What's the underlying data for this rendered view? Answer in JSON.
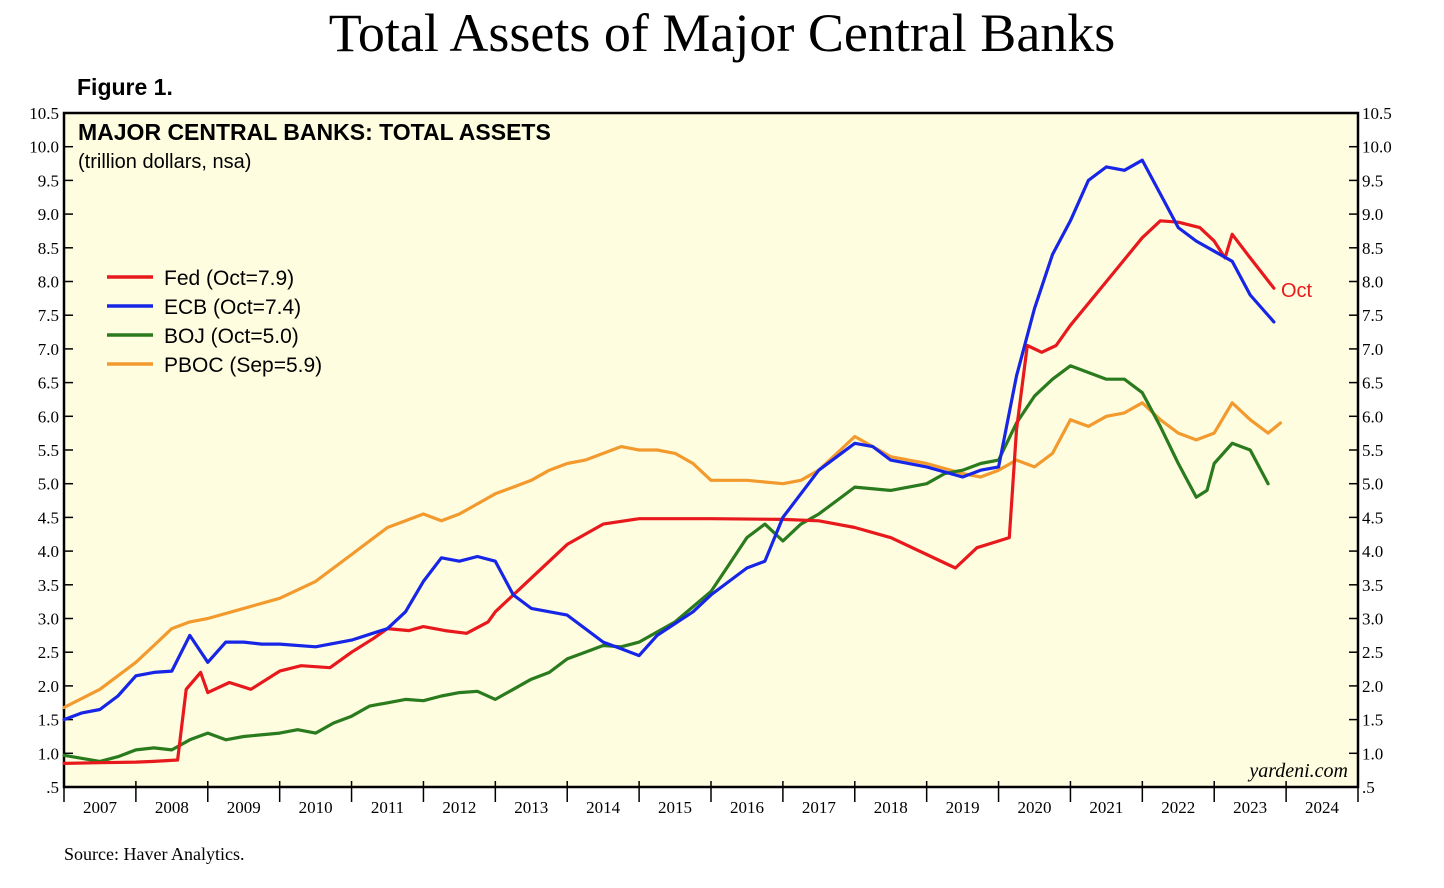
{
  "page": {
    "title": "Total Assets of Major Central Banks",
    "figure_label": "Figure 1.",
    "source": "Source: Haver Analytics.",
    "watermark": "yardeni.com"
  },
  "colors": {
    "plot_background": "#fefde0",
    "fed": "#e8191c",
    "ecb": "#1726e6",
    "boj": "#2a7a1e",
    "pboc": "#f29a2e"
  },
  "chart_data": {
    "type": "line",
    "title": "MAJOR CENTRAL BANKS: TOTAL ASSETS",
    "subtitle": "(trillion dollars, nsa)",
    "xlabel": "",
    "ylabel": "",
    "x_categories": [
      "2007",
      "2008",
      "2009",
      "2010",
      "2011",
      "2012",
      "2013",
      "2014",
      "2015",
      "2016",
      "2017",
      "2018",
      "2019",
      "2020",
      "2021",
      "2022",
      "2023",
      "2024"
    ],
    "xlim": [
      2007.0,
      2025.0
    ],
    "ylim": [
      0.5,
      10.5
    ],
    "y_ticks": [
      ".5",
      "1.0",
      "1.5",
      "2.0",
      "2.5",
      "3.0",
      "3.5",
      "4.0",
      "4.5",
      "5.0",
      "5.5",
      "6.0",
      "6.5",
      "7.0",
      "7.5",
      "8.0",
      "8.5",
      "9.0",
      "9.5",
      "10.0",
      "10.5"
    ],
    "grid": false,
    "legend_position": "top-left",
    "end_annotation": "Oct",
    "series": [
      {
        "name": "Fed (Oct=7.9)",
        "key": "fed",
        "points": [
          [
            2007.0,
            0.85
          ],
          [
            2007.5,
            0.86
          ],
          [
            2008.0,
            0.87
          ],
          [
            2008.25,
            0.88
          ],
          [
            2008.58,
            0.9
          ],
          [
            2008.7,
            1.95
          ],
          [
            2008.9,
            2.2
          ],
          [
            2009.0,
            1.9
          ],
          [
            2009.3,
            2.05
          ],
          [
            2009.6,
            1.95
          ],
          [
            2010.0,
            2.22
          ],
          [
            2010.3,
            2.3
          ],
          [
            2010.7,
            2.27
          ],
          [
            2011.0,
            2.5
          ],
          [
            2011.3,
            2.7
          ],
          [
            2011.5,
            2.85
          ],
          [
            2011.8,
            2.82
          ],
          [
            2012.0,
            2.88
          ],
          [
            2012.3,
            2.82
          ],
          [
            2012.6,
            2.78
          ],
          [
            2012.9,
            2.95
          ],
          [
            2013.0,
            3.1
          ],
          [
            2013.5,
            3.6
          ],
          [
            2014.0,
            4.1
          ],
          [
            2014.5,
            4.4
          ],
          [
            2015.0,
            4.48
          ],
          [
            2016.0,
            4.48
          ],
          [
            2017.0,
            4.47
          ],
          [
            2017.5,
            4.45
          ],
          [
            2018.0,
            4.35
          ],
          [
            2018.5,
            4.2
          ],
          [
            2019.0,
            3.95
          ],
          [
            2019.4,
            3.75
          ],
          [
            2019.7,
            4.05
          ],
          [
            2020.0,
            4.15
          ],
          [
            2020.15,
            4.2
          ],
          [
            2020.25,
            5.8
          ],
          [
            2020.4,
            7.05
          ],
          [
            2020.6,
            6.95
          ],
          [
            2020.8,
            7.05
          ],
          [
            2021.0,
            7.35
          ],
          [
            2021.5,
            8.0
          ],
          [
            2022.0,
            8.65
          ],
          [
            2022.25,
            8.9
          ],
          [
            2022.5,
            8.88
          ],
          [
            2022.8,
            8.8
          ],
          [
            2023.0,
            8.6
          ],
          [
            2023.15,
            8.35
          ],
          [
            2023.25,
            8.7
          ],
          [
            2023.5,
            8.35
          ],
          [
            2023.83,
            7.9
          ]
        ]
      },
      {
        "name": "ECB (Oct=7.4)",
        "key": "ecb",
        "points": [
          [
            2007.0,
            1.5
          ],
          [
            2007.25,
            1.6
          ],
          [
            2007.5,
            1.65
          ],
          [
            2007.75,
            1.85
          ],
          [
            2008.0,
            2.15
          ],
          [
            2008.25,
            2.2
          ],
          [
            2008.5,
            2.22
          ],
          [
            2008.75,
            2.75
          ],
          [
            2009.0,
            2.35
          ],
          [
            2009.25,
            2.65
          ],
          [
            2009.5,
            2.65
          ],
          [
            2009.75,
            2.62
          ],
          [
            2010.0,
            2.62
          ],
          [
            2010.5,
            2.58
          ],
          [
            2011.0,
            2.68
          ],
          [
            2011.5,
            2.85
          ],
          [
            2011.75,
            3.1
          ],
          [
            2012.0,
            3.55
          ],
          [
            2012.25,
            3.9
          ],
          [
            2012.5,
            3.85
          ],
          [
            2012.75,
            3.92
          ],
          [
            2013.0,
            3.85
          ],
          [
            2013.25,
            3.35
          ],
          [
            2013.5,
            3.15
          ],
          [
            2014.0,
            3.05
          ],
          [
            2014.5,
            2.65
          ],
          [
            2014.75,
            2.55
          ],
          [
            2015.0,
            2.45
          ],
          [
            2015.25,
            2.75
          ],
          [
            2015.75,
            3.1
          ],
          [
            2016.0,
            3.35
          ],
          [
            2016.5,
            3.75
          ],
          [
            2016.75,
            3.85
          ],
          [
            2017.0,
            4.5
          ],
          [
            2017.5,
            5.2
          ],
          [
            2018.0,
            5.6
          ],
          [
            2018.25,
            5.55
          ],
          [
            2018.5,
            5.35
          ],
          [
            2019.0,
            5.25
          ],
          [
            2019.5,
            5.1
          ],
          [
            2019.75,
            5.2
          ],
          [
            2020.0,
            5.25
          ],
          [
            2020.25,
            6.6
          ],
          [
            2020.5,
            7.6
          ],
          [
            2020.75,
            8.4
          ],
          [
            2021.0,
            8.9
          ],
          [
            2021.25,
            9.5
          ],
          [
            2021.5,
            9.7
          ],
          [
            2021.75,
            9.65
          ],
          [
            2022.0,
            9.8
          ],
          [
            2022.25,
            9.3
          ],
          [
            2022.5,
            8.8
          ],
          [
            2022.75,
            8.6
          ],
          [
            2023.0,
            8.45
          ],
          [
            2023.25,
            8.3
          ],
          [
            2023.5,
            7.8
          ],
          [
            2023.83,
            7.4
          ]
        ]
      },
      {
        "name": "BOJ (Oct=5.0)",
        "key": "boj",
        "points": [
          [
            2007.0,
            0.97
          ],
          [
            2007.5,
            0.88
          ],
          [
            2007.75,
            0.95
          ],
          [
            2008.0,
            1.05
          ],
          [
            2008.25,
            1.08
          ],
          [
            2008.5,
            1.05
          ],
          [
            2008.75,
            1.2
          ],
          [
            2009.0,
            1.3
          ],
          [
            2009.25,
            1.2
          ],
          [
            2009.5,
            1.25
          ],
          [
            2010.0,
            1.3
          ],
          [
            2010.25,
            1.35
          ],
          [
            2010.5,
            1.3
          ],
          [
            2010.75,
            1.45
          ],
          [
            2011.0,
            1.55
          ],
          [
            2011.25,
            1.7
          ],
          [
            2011.5,
            1.75
          ],
          [
            2011.75,
            1.8
          ],
          [
            2012.0,
            1.78
          ],
          [
            2012.25,
            1.85
          ],
          [
            2012.5,
            1.9
          ],
          [
            2012.75,
            1.92
          ],
          [
            2013.0,
            1.8
          ],
          [
            2013.25,
            1.95
          ],
          [
            2013.5,
            2.1
          ],
          [
            2013.75,
            2.2
          ],
          [
            2014.0,
            2.4
          ],
          [
            2014.25,
            2.5
          ],
          [
            2014.5,
            2.6
          ],
          [
            2014.75,
            2.58
          ],
          [
            2015.0,
            2.65
          ],
          [
            2015.5,
            2.95
          ],
          [
            2016.0,
            3.4
          ],
          [
            2016.25,
            3.8
          ],
          [
            2016.5,
            4.2
          ],
          [
            2016.75,
            4.4
          ],
          [
            2017.0,
            4.15
          ],
          [
            2017.25,
            4.4
          ],
          [
            2017.5,
            4.55
          ],
          [
            2017.75,
            4.75
          ],
          [
            2018.0,
            4.95
          ],
          [
            2018.5,
            4.9
          ],
          [
            2019.0,
            5.0
          ],
          [
            2019.25,
            5.15
          ],
          [
            2019.5,
            5.2
          ],
          [
            2019.75,
            5.3
          ],
          [
            2020.0,
            5.35
          ],
          [
            2020.25,
            5.9
          ],
          [
            2020.5,
            6.3
          ],
          [
            2020.75,
            6.55
          ],
          [
            2021.0,
            6.75
          ],
          [
            2021.25,
            6.65
          ],
          [
            2021.5,
            6.55
          ],
          [
            2021.75,
            6.55
          ],
          [
            2022.0,
            6.35
          ],
          [
            2022.25,
            5.85
          ],
          [
            2022.5,
            5.3
          ],
          [
            2022.75,
            4.8
          ],
          [
            2022.9,
            4.9
          ],
          [
            2023.0,
            5.3
          ],
          [
            2023.25,
            5.6
          ],
          [
            2023.5,
            5.5
          ],
          [
            2023.75,
            5.0
          ]
        ]
      },
      {
        "name": "PBOC (Sep=5.9)",
        "key": "pboc",
        "points": [
          [
            2007.0,
            1.68
          ],
          [
            2007.5,
            1.95
          ],
          [
            2008.0,
            2.35
          ],
          [
            2008.25,
            2.6
          ],
          [
            2008.5,
            2.85
          ],
          [
            2008.75,
            2.95
          ],
          [
            2009.0,
            3.0
          ],
          [
            2009.5,
            3.15
          ],
          [
            2010.0,
            3.3
          ],
          [
            2010.5,
            3.55
          ],
          [
            2011.0,
            3.95
          ],
          [
            2011.25,
            4.15
          ],
          [
            2011.5,
            4.35
          ],
          [
            2011.75,
            4.45
          ],
          [
            2012.0,
            4.55
          ],
          [
            2012.25,
            4.45
          ],
          [
            2012.5,
            4.55
          ],
          [
            2012.75,
            4.7
          ],
          [
            2013.0,
            4.85
          ],
          [
            2013.25,
            4.95
          ],
          [
            2013.5,
            5.05
          ],
          [
            2013.75,
            5.2
          ],
          [
            2014.0,
            5.3
          ],
          [
            2014.25,
            5.35
          ],
          [
            2014.5,
            5.45
          ],
          [
            2014.75,
            5.55
          ],
          [
            2015.0,
            5.5
          ],
          [
            2015.25,
            5.5
          ],
          [
            2015.5,
            5.45
          ],
          [
            2015.75,
            5.3
          ],
          [
            2016.0,
            5.05
          ],
          [
            2016.5,
            5.05
          ],
          [
            2017.0,
            5.0
          ],
          [
            2017.25,
            5.05
          ],
          [
            2017.5,
            5.2
          ],
          [
            2017.75,
            5.45
          ],
          [
            2018.0,
            5.7
          ],
          [
            2018.25,
            5.55
          ],
          [
            2018.5,
            5.4
          ],
          [
            2019.0,
            5.3
          ],
          [
            2019.5,
            5.15
          ],
          [
            2019.75,
            5.1
          ],
          [
            2020.0,
            5.2
          ],
          [
            2020.25,
            5.35
          ],
          [
            2020.5,
            5.25
          ],
          [
            2020.75,
            5.45
          ],
          [
            2021.0,
            5.95
          ],
          [
            2021.25,
            5.85
          ],
          [
            2021.5,
            6.0
          ],
          [
            2021.75,
            6.05
          ],
          [
            2022.0,
            6.2
          ],
          [
            2022.25,
            5.95
          ],
          [
            2022.5,
            5.75
          ],
          [
            2022.75,
            5.65
          ],
          [
            2023.0,
            5.75
          ],
          [
            2023.25,
            6.2
          ],
          [
            2023.5,
            5.95
          ],
          [
            2023.75,
            5.75
          ],
          [
            2023.92,
            5.9
          ]
        ]
      }
    ]
  }
}
